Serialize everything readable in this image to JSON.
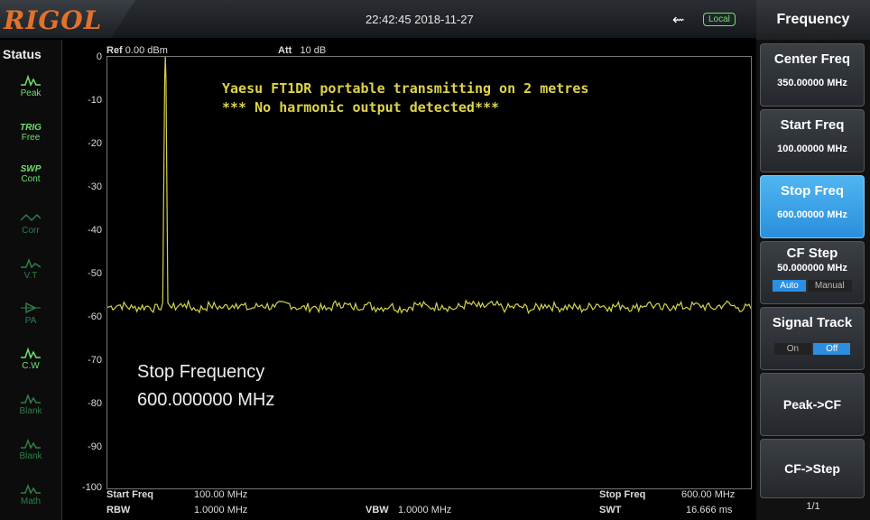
{
  "header": {
    "logo": "RIGOL",
    "datetime": "22:42:45 2018-11-27",
    "local_badge": "Local"
  },
  "status": {
    "title": "Status",
    "items": [
      {
        "icon": "peak-icon",
        "label": "Peak"
      },
      {
        "icon": "trig-icon",
        "label": "TRIG",
        "sub": "Free"
      },
      {
        "icon": "swp-icon",
        "label": "SWP",
        "sub": "Cont"
      },
      {
        "icon": "corr-icon",
        "label": "Corr"
      },
      {
        "icon": "vt-icon",
        "label": "V.T"
      },
      {
        "icon": "pa-icon",
        "label": "PA"
      },
      {
        "icon": "cw-icon",
        "label": "C.W"
      },
      {
        "icon": "blank-icon",
        "label": "Blank"
      },
      {
        "icon": "blank-icon",
        "label": "Blank"
      },
      {
        "icon": "math-icon",
        "label": "Math"
      }
    ]
  },
  "screen": {
    "ref_label": "Ref",
    "ref_value": "0.00 dBm",
    "att_label": "Att",
    "att_value": "10 dB",
    "y_ticks": [
      "0",
      "-10",
      "-20",
      "-30",
      "-40",
      "-50",
      "-60",
      "-70",
      "-80",
      "-90",
      "-100"
    ],
    "annotation_line1": "Yaesu FT1DR portable transmitting on 2 metres",
    "annotation_line2": "*** No harmonic output detected***",
    "stop_freq_title": "Stop Frequency",
    "stop_freq_value": "600.000000 MHz"
  },
  "footer": {
    "start_freq_label": "Start Freq",
    "start_freq_value": "100.00 MHz",
    "stop_freq_label": "Stop Freq",
    "stop_freq_value": "600.00 MHz",
    "rbw_label": "RBW",
    "rbw_value": "1.0000 MHz",
    "vbw_label": "VBW",
    "vbw_value": "1.0000 MHz",
    "swt_label": "SWT",
    "swt_value": "16.666 ms"
  },
  "menu": {
    "title": "Frequency",
    "center_freq": {
      "label": "Center Freq",
      "value": "350.00000 MHz"
    },
    "start_freq": {
      "label": "Start Freq",
      "value": "100.00000 MHz"
    },
    "stop_freq": {
      "label": "Stop Freq",
      "value": "600.00000 MHz"
    },
    "cf_step": {
      "label": "CF Step",
      "value": "50.000000 MHz",
      "auto": "Auto",
      "manual": "Manual"
    },
    "signal_track": {
      "label": "Signal Track",
      "on": "On",
      "off": "Off"
    },
    "peak_cf": "Peak->CF",
    "cf_step_btn": "CF->Step",
    "page": "1/1"
  },
  "chart_data": {
    "type": "line",
    "x_unit": "MHz",
    "xlim": [
      100,
      600
    ],
    "ylim": [
      -100,
      0
    ],
    "y_unit": "dBm",
    "grid": false,
    "series": [
      {
        "color": "#d6d24a",
        "noise_floor": -58,
        "points": [
          [
            100,
            -58
          ],
          [
            110,
            -57.5
          ],
          [
            120,
            -58.2
          ],
          [
            130,
            -57.8
          ],
          [
            140,
            -58.5
          ],
          [
            143,
            -57
          ],
          [
            144.5,
            -5
          ],
          [
            145,
            0
          ],
          [
            145.5,
            -5
          ],
          [
            147,
            -57
          ],
          [
            150,
            -58.2
          ],
          [
            160,
            -57.3
          ],
          [
            170,
            -58.6
          ],
          [
            180,
            -57.6
          ],
          [
            190,
            -58.1
          ],
          [
            200,
            -57.2
          ],
          [
            210,
            -58.4
          ],
          [
            220,
            -57.5
          ],
          [
            230,
            -58.0
          ],
          [
            240,
            -57.1
          ],
          [
            250,
            -58.3
          ],
          [
            260,
            -57.9
          ],
          [
            270,
            -58.6
          ],
          [
            280,
            -57.0
          ],
          [
            290,
            -58.1
          ],
          [
            300,
            -57.4
          ],
          [
            310,
            -58.2
          ],
          [
            320,
            -57.7
          ],
          [
            330,
            -58.5
          ],
          [
            340,
            -57.3
          ],
          [
            350,
            -58.0
          ],
          [
            360,
            -57.6
          ],
          [
            370,
            -58.4
          ],
          [
            380,
            -57.2
          ],
          [
            390,
            -58.0
          ],
          [
            400,
            -57.5
          ],
          [
            410,
            -58.3
          ],
          [
            420,
            -57.8
          ],
          [
            430,
            -58.6
          ],
          [
            440,
            -57.4
          ],
          [
            450,
            -58.1
          ],
          [
            460,
            -57.9
          ],
          [
            470,
            -58.5
          ],
          [
            480,
            -57.3
          ],
          [
            490,
            -58.0
          ],
          [
            500,
            -57.6
          ],
          [
            510,
            -58.2
          ],
          [
            520,
            -57.1
          ],
          [
            530,
            -58.4
          ],
          [
            540,
            -57.7
          ],
          [
            550,
            -58.0
          ],
          [
            560,
            -57.5
          ],
          [
            570,
            -58.3
          ],
          [
            580,
            -57.2
          ],
          [
            590,
            -58.1
          ],
          [
            600,
            -58.3
          ]
        ]
      }
    ]
  }
}
